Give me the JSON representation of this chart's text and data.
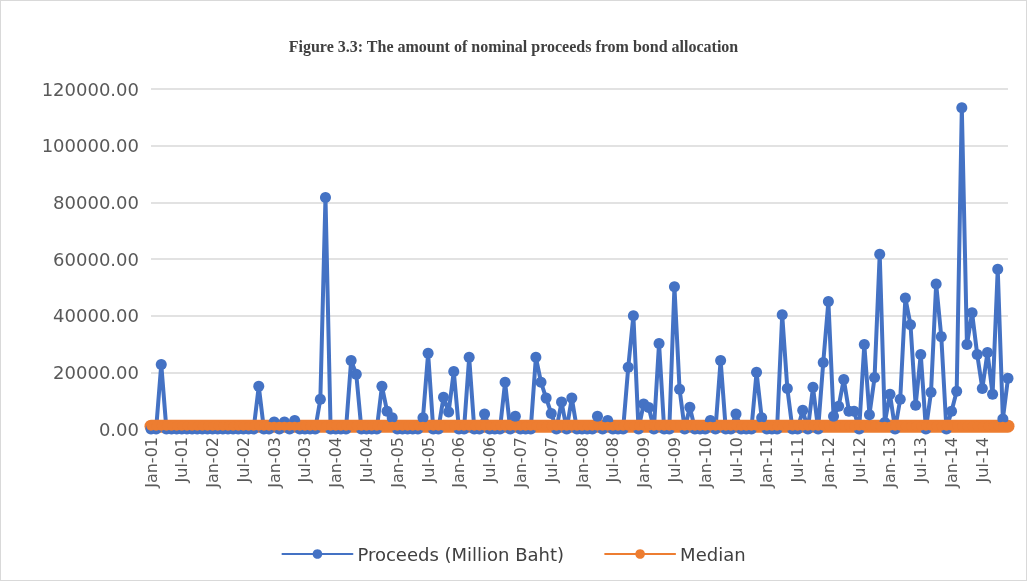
{
  "chart_data": {
    "type": "line",
    "title": "Figure 3.3: The amount of nominal proceeds from bond allocation",
    "categories": [
      "Jan-01",
      null,
      null,
      null,
      null,
      null,
      "Jul-01",
      null,
      null,
      null,
      null,
      null,
      "Jan-02",
      null,
      null,
      null,
      null,
      null,
      "Jul-02",
      null,
      null,
      null,
      null,
      null,
      "Jan-03",
      null,
      null,
      null,
      null,
      null,
      "Jul-03",
      null,
      null,
      null,
      null,
      null,
      "Jan-04",
      null,
      null,
      null,
      null,
      null,
      "Jul-04",
      null,
      null,
      null,
      null,
      null,
      "Jan-05",
      null,
      null,
      null,
      null,
      null,
      "Jul-05",
      null,
      null,
      null,
      null,
      null,
      "Jan-06",
      null,
      null,
      null,
      null,
      null,
      "Jul-06",
      null,
      null,
      null,
      null,
      null,
      "Jan-07",
      null,
      null,
      null,
      null,
      null,
      "Jul-07",
      null,
      null,
      null,
      null,
      null,
      "Jan-08",
      null,
      null,
      null,
      null,
      null,
      "Jul-08",
      null,
      null,
      null,
      null,
      null,
      "Jan-09",
      null,
      null,
      null,
      null,
      null,
      "Jul-09",
      null,
      null,
      null,
      null,
      null,
      "Jan-10",
      null,
      null,
      null,
      null,
      null,
      "Jul-10",
      null,
      null,
      null,
      null,
      null,
      "Jan-11",
      null,
      null,
      null,
      null,
      null,
      "Jul-11",
      null,
      null,
      null,
      null,
      null,
      "Jan-12",
      null,
      null,
      null,
      null,
      null,
      "Jul-12",
      null,
      null,
      null,
      null,
      null,
      "Jan-13",
      null,
      null,
      null,
      null,
      null,
      "Jul-13",
      null,
      null,
      null,
      null,
      null,
      "Jan-14",
      null,
      null,
      null,
      null,
      null,
      "Jul-14",
      null,
      null,
      null,
      null,
      null
    ],
    "series": [
      {
        "name": "Proceeds (Million Baht)",
        "color": "#4472c4",
        "values": [
          0,
          0,
          22800,
          0,
          0,
          0,
          0,
          0,
          0,
          0,
          0,
          0,
          0,
          0,
          0,
          0,
          0,
          0,
          0,
          0,
          0,
          15100,
          0,
          0,
          2500,
          0,
          2500,
          0,
          3000,
          0,
          0,
          0,
          0,
          10500,
          81700,
          0,
          0,
          0,
          0,
          24200,
          19300,
          0,
          0,
          0,
          0,
          15100,
          6300,
          4000,
          0,
          0,
          0,
          0,
          0,
          4000,
          26700,
          0,
          0,
          11200,
          6000,
          20300,
          0,
          0,
          25300,
          0,
          0,
          5300,
          0,
          0,
          0,
          16500,
          0,
          4500,
          0,
          0,
          0,
          25300,
          16500,
          10900,
          5500,
          0,
          9500,
          0,
          10900,
          0,
          0,
          0,
          0,
          4500,
          0,
          3000,
          0,
          0,
          0,
          21800,
          40000,
          0,
          8800,
          7600,
          0,
          30200,
          0,
          0,
          50200,
          14000,
          0,
          7700,
          0,
          0,
          0,
          3000,
          0,
          24200,
          0,
          0,
          5300,
          0,
          0,
          0,
          20000,
          4000,
          0,
          0,
          0,
          40300,
          14300,
          0,
          0,
          6600,
          0,
          14700,
          0,
          23500,
          45000,
          4500,
          8000,
          17500,
          6300,
          6300,
          0,
          29800,
          5000,
          18200,
          61700,
          2300,
          12300,
          0,
          10500,
          46200,
          36800,
          8400,
          26300,
          0,
          13000,
          51200,
          32600,
          0,
          6300,
          13300,
          113400,
          29800,
          41000,
          26300,
          14300,
          27000,
          12300,
          56400,
          3500,
          17900
        ]
      },
      {
        "name": "Median",
        "color": "#ed7d31",
        "values": [
          1000,
          1000,
          1000,
          1000,
          1000,
          1000,
          1000,
          1000,
          1000,
          1000,
          1000,
          1000,
          1000,
          1000,
          1000,
          1000,
          1000,
          1000,
          1000,
          1000,
          1000,
          1000,
          1000,
          1000,
          1000,
          1000,
          1000,
          1000,
          1000,
          1000,
          1000,
          1000,
          1000,
          1000,
          1000,
          1000,
          1000,
          1000,
          1000,
          1000,
          1000,
          1000,
          1000,
          1000,
          1000,
          1000,
          1000,
          1000,
          1000,
          1000,
          1000,
          1000,
          1000,
          1000,
          1000,
          1000,
          1000,
          1000,
          1000,
          1000,
          1000,
          1000,
          1000,
          1000,
          1000,
          1000,
          1000,
          1000,
          1000,
          1000,
          1000,
          1000,
          1000,
          1000,
          1000,
          1000,
          1000,
          1000,
          1000,
          1000,
          1000,
          1000,
          1000,
          1000,
          1000,
          1000,
          1000,
          1000,
          1000,
          1000,
          1000,
          1000,
          1000,
          1000,
          1000,
          1000,
          1000,
          1000,
          1000,
          1000,
          1000,
          1000,
          1000,
          1000,
          1000,
          1000,
          1000,
          1000,
          1000,
          1000,
          1000,
          1000,
          1000,
          1000,
          1000,
          1000,
          1000,
          1000,
          1000,
          1000,
          1000,
          1000,
          1000,
          1000,
          1000,
          1000,
          1000,
          1000,
          1000,
          1000,
          1000,
          1000,
          1000,
          1000,
          1000,
          1000,
          1000,
          1000,
          1000,
          1000,
          1000,
          1000,
          1000,
          1000,
          1000,
          1000,
          1000,
          1000,
          1000,
          1000,
          1000,
          1000,
          1000,
          1000,
          1000,
          1000,
          1000,
          1000,
          1000,
          1000,
          1000,
          1000,
          1000,
          1000,
          1000,
          1000,
          1000,
          1000
        ]
      }
    ],
    "ylim": [
      0,
      120000
    ],
    "yticks": [
      {
        "value": 0,
        "label": "0.00"
      },
      {
        "value": 20000,
        "label": "20000.00"
      },
      {
        "value": 40000,
        "label": "40000.00"
      },
      {
        "value": 60000,
        "label": "60000.00"
      },
      {
        "value": 80000,
        "label": "80000.00"
      },
      {
        "value": 100000,
        "label": "100000.00"
      },
      {
        "value": 120000,
        "label": "120000.00"
      }
    ],
    "grid": "y",
    "legend": "bottom",
    "marker": "circle"
  }
}
